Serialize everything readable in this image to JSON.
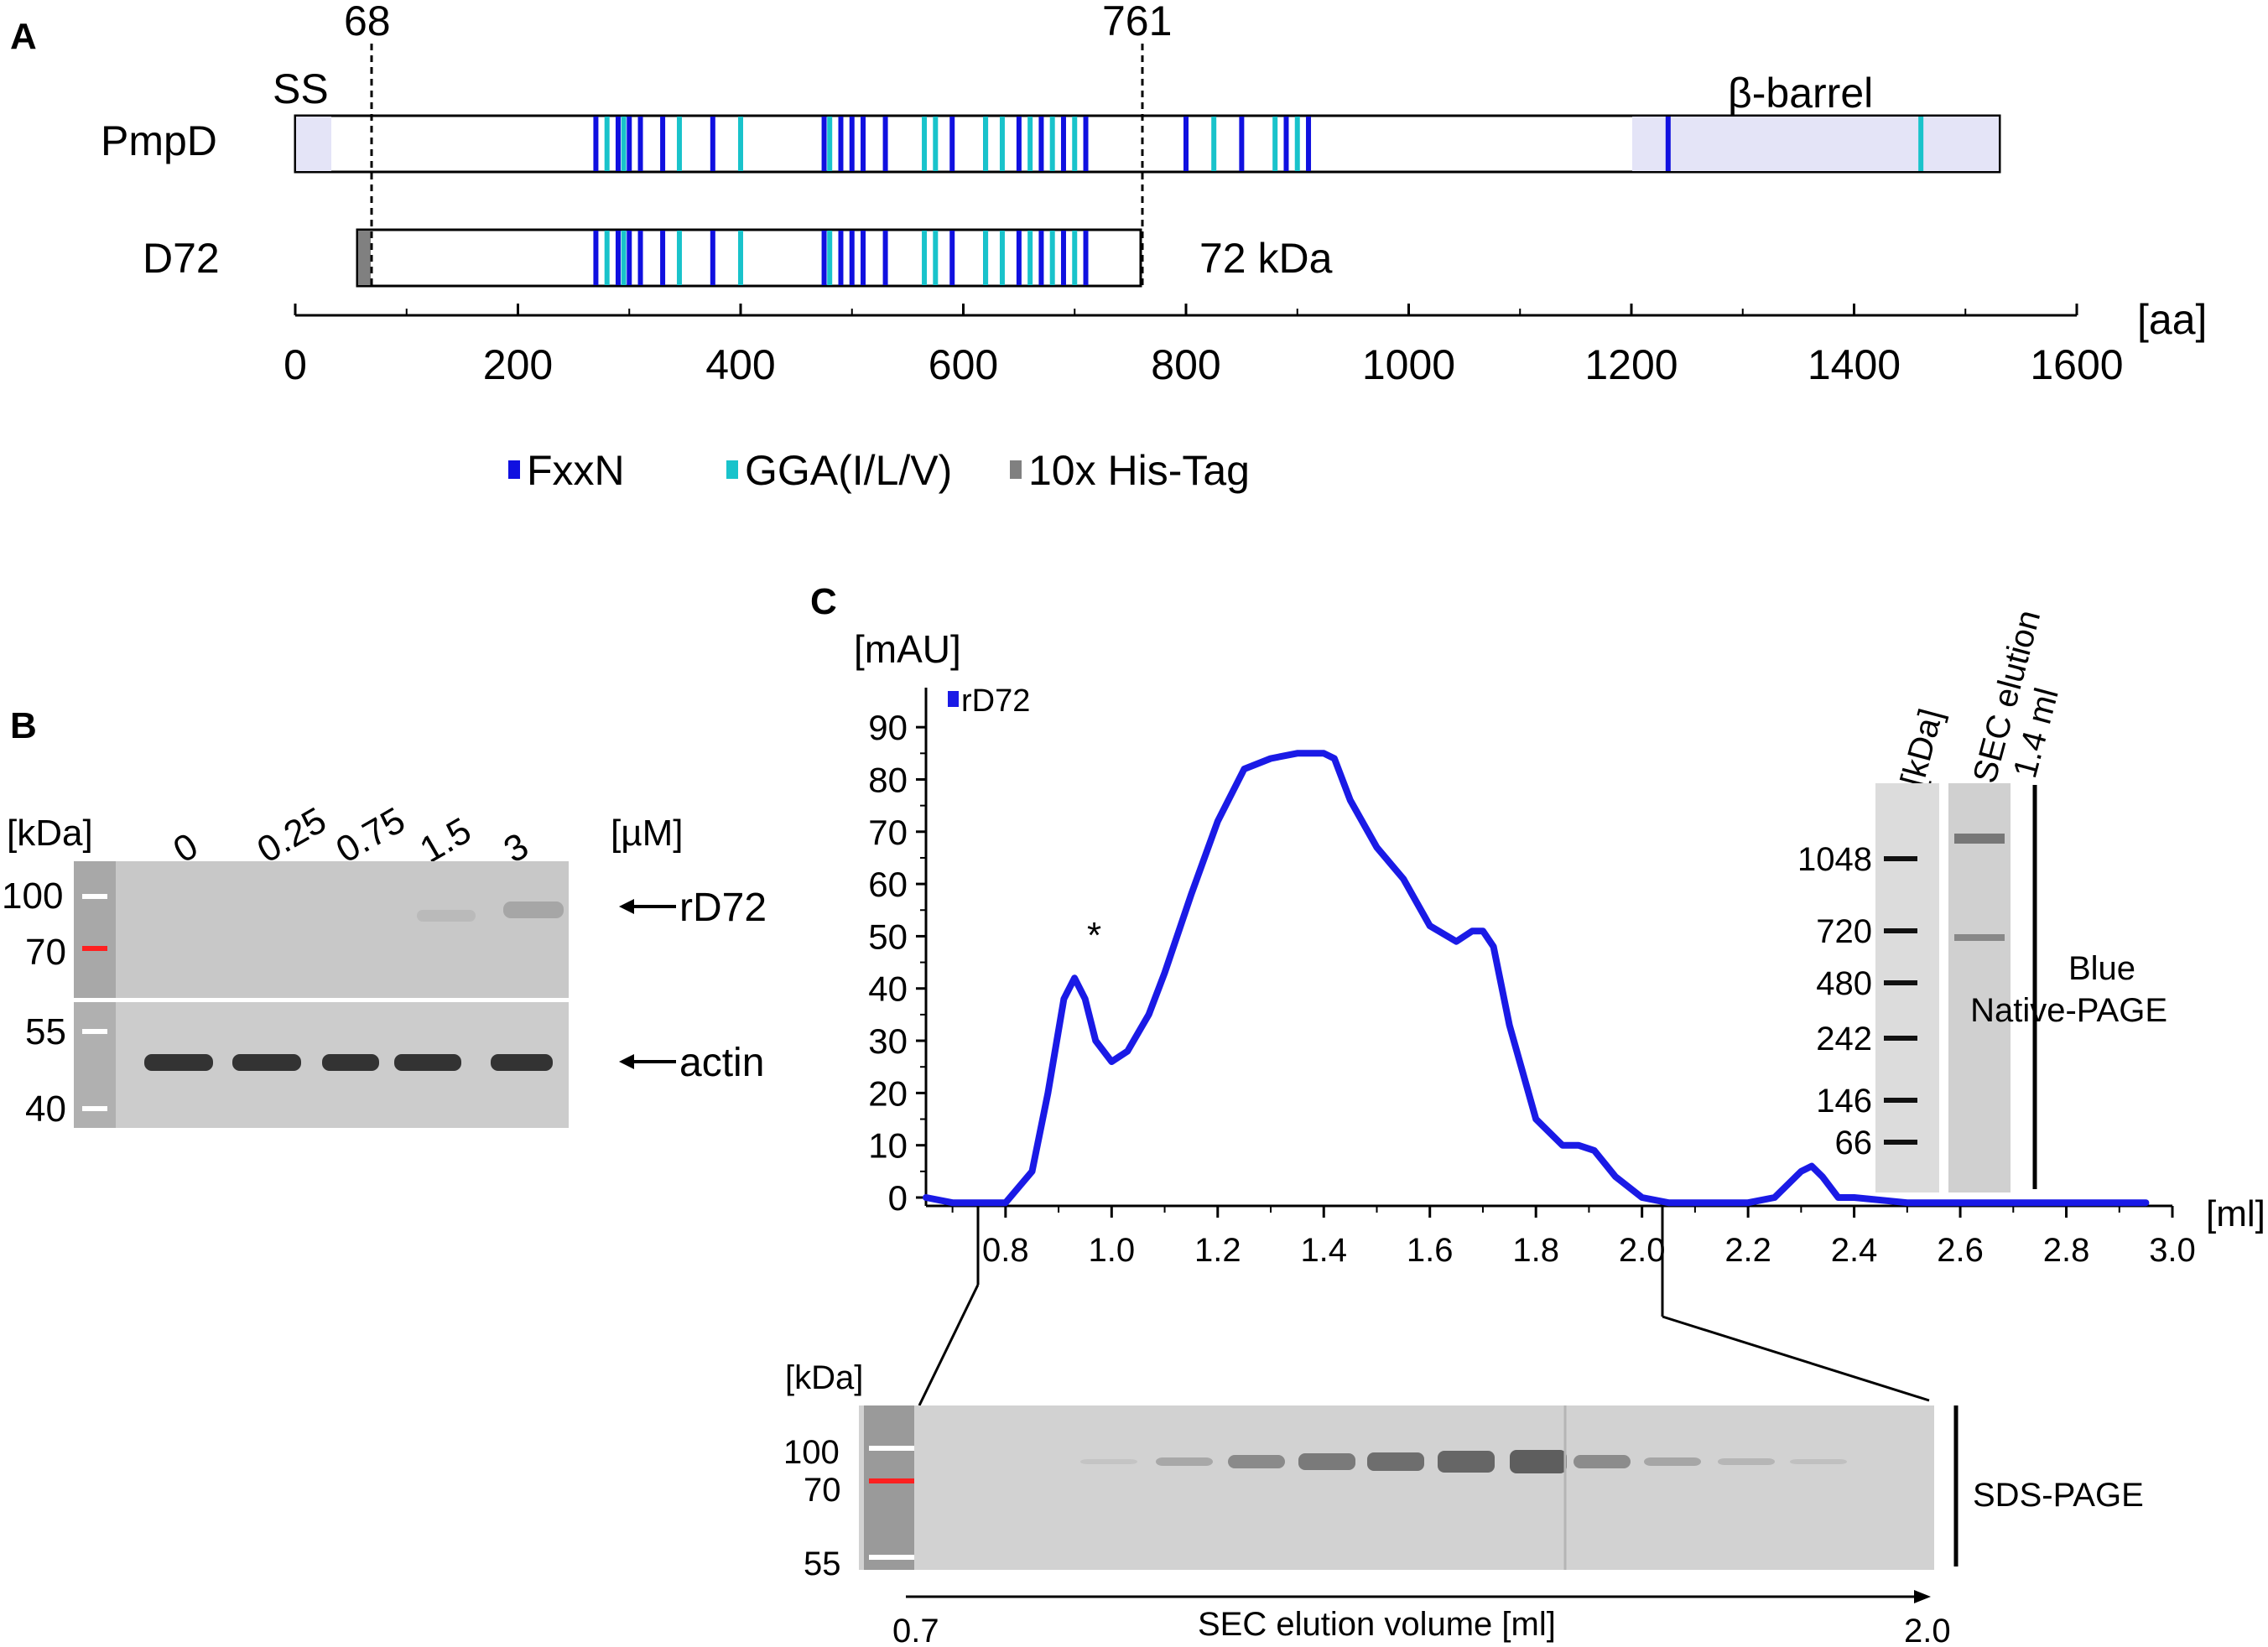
{
  "panel_a": {
    "label": "A",
    "ss_label": "SS",
    "barrel_label": "β-barrel",
    "marker_left": "68",
    "marker_right": "761",
    "rows": [
      {
        "name": "PmpD",
        "start": 0,
        "end": 1531
      },
      {
        "name": "D72",
        "start": 57,
        "end": 761,
        "size_label": "72 kDa"
      }
    ],
    "ss_region": [
      0,
      32
    ],
    "barrel_region": [
      1205,
      1531
    ],
    "fxxn_positions": [
      270,
      290,
      300,
      310,
      330,
      375,
      475,
      490,
      500,
      510,
      530,
      590,
      620,
      650,
      670,
      690,
      710,
      800,
      850,
      890,
      910,
      1233
    ],
    "gga_positions": [
      280,
      295,
      345,
      400,
      480,
      565,
      575,
      620,
      635,
      660,
      680,
      700,
      825,
      880,
      900,
      1460
    ],
    "his_tag": [
      57,
      68
    ],
    "axis": {
      "min": 0,
      "max": 1600,
      "ticks": [
        "0",
        "200",
        "400",
        "600",
        "800",
        "1000",
        "1200",
        "1400",
        "1600"
      ],
      "unit": "[aa]"
    },
    "legend": [
      {
        "label": "FxxN",
        "color": "#1010e0"
      },
      {
        "label": "GGA(I/L/V)",
        "color": "#19c3cb"
      },
      {
        "label": "10x His-Tag",
        "color": "#808080"
      }
    ]
  },
  "panel_b": {
    "label": "B",
    "unit_kda": "[kDa]",
    "unit_um": "[µM]",
    "concentrations": [
      "0",
      "0.25",
      "0.75",
      "1.5",
      "3"
    ],
    "top_markers": [
      "100",
      "70"
    ],
    "bottom_markers": [
      "55",
      "40"
    ],
    "top_band": "rD72",
    "bottom_band": "actin"
  },
  "panel_c": {
    "label": "C",
    "y_unit": "[mAU]",
    "x_unit": "[ml]",
    "peak_marker": "*",
    "inset": {
      "unit": "[kDa]",
      "lane_title_1": "SEC elution",
      "lane_title_2": "1.4 ml",
      "markers": [
        "1048",
        "720",
        "480",
        "242",
        "146",
        "66"
      ],
      "caption_1": "Blue",
      "caption_2": "Native-PAGE"
    },
    "sds": {
      "unit": "[kDa]",
      "markers": [
        "100",
        "70",
        "55"
      ],
      "caption": "SDS-PAGE",
      "x_label": "SEC elution volume [ml]",
      "x_start": "0.7",
      "x_end": "2.0"
    }
  },
  "chart_data": {
    "type": "line",
    "xlim": [
      0.65,
      3.0
    ],
    "ylim": [
      0,
      95
    ],
    "xticks": [
      "0.8",
      "1.0",
      "1.2",
      "1.4",
      "1.6",
      "1.8",
      "2.0",
      "2.2",
      "2.4",
      "2.6",
      "2.8",
      "3.0"
    ],
    "yticks": [
      "0",
      "10",
      "20",
      "30",
      "40",
      "50",
      "60",
      "70",
      "80",
      "90"
    ],
    "ylabel": "[mAU]",
    "xlabel": "[ml]",
    "legend_placement": "top-left",
    "series": [
      {
        "name": "rD72",
        "color": "#1a1ae6",
        "x": [
          0.65,
          0.7,
          0.75,
          0.8,
          0.85,
          0.88,
          0.91,
          0.93,
          0.95,
          0.97,
          1.0,
          1.03,
          1.07,
          1.1,
          1.15,
          1.2,
          1.25,
          1.3,
          1.35,
          1.4,
          1.42,
          1.45,
          1.5,
          1.55,
          1.6,
          1.65,
          1.68,
          1.7,
          1.72,
          1.75,
          1.8,
          1.85,
          1.88,
          1.91,
          1.95,
          2.0,
          2.05,
          2.1,
          2.15,
          2.2,
          2.25,
          2.28,
          2.3,
          2.32,
          2.34,
          2.37,
          2.4,
          2.5,
          2.6,
          2.7,
          2.8,
          2.9,
          2.95
        ],
        "y": [
          0,
          -1,
          -1,
          -1,
          5,
          20,
          38,
          42,
          38,
          30,
          26,
          28,
          35,
          43,
          58,
          72,
          82,
          84,
          85,
          85,
          84,
          76,
          67,
          61,
          52,
          49,
          51,
          51,
          48,
          33,
          15,
          10,
          10,
          9,
          4,
          0,
          -1,
          -1,
          -1,
          -1,
          0,
          3,
          5,
          6,
          4,
          0,
          0,
          -1,
          -1,
          -1,
          -1,
          -1,
          -1
        ]
      }
    ]
  }
}
